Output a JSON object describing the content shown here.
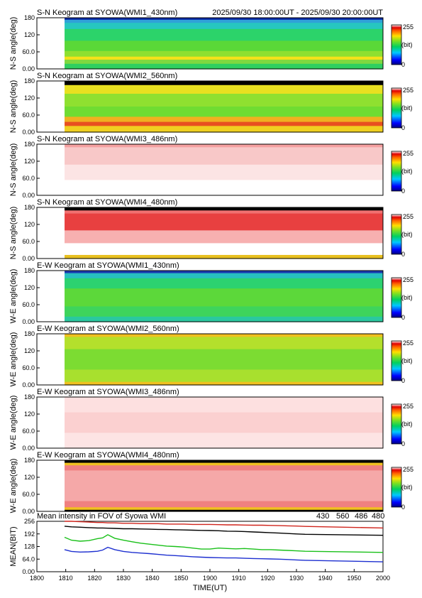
{
  "header": {
    "time_range": "2025/09/30 18:00:00UT - 2025/09/30 20:00:00UT"
  },
  "colorbar": {
    "max_label": "255",
    "unit_label": "(bit)",
    "min_label": "0"
  },
  "chart_data": [
    {
      "type": "heatmap",
      "title": "S-N Keogram at SYOWA(WMI1_430nm)",
      "ylabel": "N-S angle(deg)",
      "yticks": [
        "180",
        "120",
        "60.0",
        "0.00"
      ],
      "ylim": [
        0,
        180
      ],
      "xlim": [
        1800,
        2000
      ],
      "data_start": 1816,
      "bands": [
        {
          "from": 0,
          "to": 0.04,
          "c": "#0a2aa8"
        },
        {
          "from": 0.04,
          "to": 0.1,
          "c": "#2fa2d8"
        },
        {
          "from": 0.1,
          "to": 0.22,
          "c": "#26c7c0"
        },
        {
          "from": 0.22,
          "to": 0.45,
          "c": "#2cd36a"
        },
        {
          "from": 0.45,
          "to": 0.65,
          "c": "#5ad838"
        },
        {
          "from": 0.65,
          "to": 0.76,
          "c": "#8ee030"
        },
        {
          "from": 0.76,
          "to": 0.82,
          "c": "#f4e21a"
        },
        {
          "from": 0.82,
          "to": 0.9,
          "c": "#7fd840"
        },
        {
          "from": 0.9,
          "to": 1,
          "c": "#2fcf60"
        }
      ]
    },
    {
      "type": "heatmap",
      "title": "S-N Keogram at SYOWA(WMI2_560nm)",
      "ylabel": "N-S angle(deg)",
      "yticks": [
        "180",
        "120",
        "60.0",
        "0.00"
      ],
      "ylim": [
        0,
        180
      ],
      "xlim": [
        1800,
        2000
      ],
      "data_start": 1816,
      "bands": [
        {
          "from": 0,
          "to": 0.08,
          "c": "#000000"
        },
        {
          "from": 0.08,
          "to": 0.25,
          "c": "#e8e020"
        },
        {
          "from": 0.25,
          "to": 0.5,
          "c": "#8fe030"
        },
        {
          "from": 0.5,
          "to": 0.7,
          "c": "#6fdc32"
        },
        {
          "from": 0.7,
          "to": 0.8,
          "c": "#f0b020"
        },
        {
          "from": 0.8,
          "to": 0.88,
          "c": "#e85020"
        },
        {
          "from": 0.88,
          "to": 1,
          "c": "#f0d020"
        }
      ]
    },
    {
      "type": "heatmap",
      "title": "S-N Keogram at SYOWA(WMI3_486nm)",
      "ylabel": "N-S angle(deg)",
      "yticks": [
        "180",
        "120",
        "60.0",
        "0.00"
      ],
      "ylim": [
        0,
        180
      ],
      "xlim": [
        1800,
        2000
      ],
      "data_start": 1816,
      "bands": [
        {
          "from": 0,
          "to": 0.06,
          "c": "#f5a0a0"
        },
        {
          "from": 0.06,
          "to": 0.4,
          "c": "#f8c8c8"
        },
        {
          "from": 0.4,
          "to": 0.7,
          "c": "#fce4e4"
        },
        {
          "from": 0.7,
          "to": 1,
          "c": "#ffffff"
        }
      ]
    },
    {
      "type": "heatmap",
      "title": "S-N Keogram at SYOWA(WMI4_480nm)",
      "ylabel": "N-S angle(deg)",
      "yticks": [
        "180",
        "120",
        "60.0",
        "0.00"
      ],
      "ylim": [
        0,
        180
      ],
      "xlim": [
        1800,
        2000
      ],
      "data_start": 1816,
      "bands": [
        {
          "from": 0,
          "to": 0.06,
          "c": "#000000"
        },
        {
          "from": 0.06,
          "to": 0.12,
          "c": "#f07070"
        },
        {
          "from": 0.12,
          "to": 0.45,
          "c": "#e84040"
        },
        {
          "from": 0.45,
          "to": 0.7,
          "c": "#f7b0b0"
        },
        {
          "from": 0.7,
          "to": 0.93,
          "c": "#ffffff"
        },
        {
          "from": 0.93,
          "to": 1,
          "c": "#e8c020"
        }
      ]
    },
    {
      "type": "heatmap",
      "title": "E-W Keogram at SYOWA(WMI1_430nm)",
      "ylabel": "W-E angle(deg)",
      "yticks": [
        "180",
        "120",
        "60.0",
        "0.00"
      ],
      "ylim": [
        0,
        180
      ],
      "xlim": [
        1800,
        2000
      ],
      "data_start": 1816,
      "bands": [
        {
          "from": 0,
          "to": 0.05,
          "c": "#1a3ab0"
        },
        {
          "from": 0.05,
          "to": 0.15,
          "c": "#27c0c0"
        },
        {
          "from": 0.15,
          "to": 0.35,
          "c": "#2cd270"
        },
        {
          "from": 0.35,
          "to": 0.7,
          "c": "#5cd83a"
        },
        {
          "from": 0.7,
          "to": 0.9,
          "c": "#3ed45c"
        },
        {
          "from": 0.9,
          "to": 1,
          "c": "#2ac8a0"
        }
      ]
    },
    {
      "type": "heatmap",
      "title": "E-W Keogram at SYOWA(WMI2_560nm)",
      "ylabel": "W-E angle(deg)",
      "yticks": [
        "180",
        "120",
        "60.0",
        "0.00"
      ],
      "ylim": [
        0,
        180
      ],
      "xlim": [
        1800,
        2000
      ],
      "data_start": 1816,
      "bands": [
        {
          "from": 0,
          "to": 0.06,
          "c": "#f0c020"
        },
        {
          "from": 0.06,
          "to": 0.3,
          "c": "#b4e02c"
        },
        {
          "from": 0.3,
          "to": 0.7,
          "c": "#7cdc32"
        },
        {
          "from": 0.7,
          "to": 0.94,
          "c": "#a8e02e"
        },
        {
          "from": 0.94,
          "to": 1,
          "c": "#f0c020"
        }
      ]
    },
    {
      "type": "heatmap",
      "title": "E-W Keogram at SYOWA(WMI3_486nm)",
      "ylabel": "W-E angle(deg)",
      "yticks": [
        "180",
        "120",
        "60.0",
        "0.00"
      ],
      "ylim": [
        0,
        180
      ],
      "xlim": [
        1800,
        2000
      ],
      "data_start": 1816,
      "bands": [
        {
          "from": 0,
          "to": 0.3,
          "c": "#fde0e0"
        },
        {
          "from": 0.3,
          "to": 0.7,
          "c": "#fbd0d0"
        },
        {
          "from": 0.7,
          "to": 1,
          "c": "#fde4e4"
        }
      ]
    },
    {
      "type": "heatmap",
      "title": "E-W Keogram at SYOWA(WMI4_480nm)",
      "ylabel": "W-E angle(deg)",
      "yticks": [
        "180",
        "120",
        "60.0",
        "0.00"
      ],
      "ylim": [
        0,
        180
      ],
      "xlim": [
        1800,
        2000
      ],
      "data_start": 1816,
      "bands": [
        {
          "from": 0,
          "to": 0.05,
          "c": "#000000"
        },
        {
          "from": 0.05,
          "to": 0.1,
          "c": "#f0c020"
        },
        {
          "from": 0.1,
          "to": 0.2,
          "c": "#f08080"
        },
        {
          "from": 0.2,
          "to": 0.8,
          "c": "#f5a8a8"
        },
        {
          "from": 0.8,
          "to": 0.92,
          "c": "#f08080"
        },
        {
          "from": 0.92,
          "to": 0.97,
          "c": "#f0c020"
        },
        {
          "from": 0.97,
          "to": 1,
          "c": "#000000"
        }
      ]
    },
    {
      "type": "line",
      "title": "Mean intensity in FOV of Syowa WMI",
      "ylabel": "MEAN(BIT)",
      "xlabel": "TIME(UT)",
      "xlim": [
        1800,
        2000
      ],
      "ylim": [
        0,
        256
      ],
      "xticks": [
        "1800",
        "1810",
        "1820",
        "1830",
        "1840",
        "1850",
        "1900",
        "1910",
        "1920",
        "1930",
        "1940",
        "1950",
        "2000"
      ],
      "yticks": [
        "256",
        "192",
        "128",
        "64.0",
        "0.00"
      ],
      "x": [
        1816,
        1820,
        1825,
        1830,
        1835,
        1838,
        1841,
        1845,
        1850,
        1855,
        1860,
        1865,
        1870,
        1875,
        1880,
        1885,
        1890,
        1895,
        1900,
        1905,
        1910,
        1915,
        1920,
        1925,
        1930,
        1935,
        1940,
        1945,
        1950,
        1955,
        2000
      ],
      "series": [
        {
          "name": "430",
          "color": "#1d2fd0",
          "values": [
            112,
            103,
            100,
            101,
            104,
            110,
            124,
            112,
            103,
            98,
            95,
            92,
            88,
            84,
            82,
            79,
            76,
            74,
            72,
            71,
            70,
            70,
            68,
            67,
            66,
            65,
            64,
            62,
            60,
            58,
            50
          ]
        },
        {
          "name": "560",
          "color": "#19c019",
          "values": [
            175,
            160,
            155,
            158,
            168,
            172,
            188,
            170,
            160,
            152,
            145,
            140,
            135,
            130,
            128,
            125,
            120,
            115,
            115,
            120,
            118,
            116,
            118,
            115,
            112,
            112,
            110,
            108,
            106,
            104,
            98
          ]
        },
        {
          "name": "486",
          "color": "#d0241c",
          "values": [
            256,
            256,
            254,
            252,
            250,
            250,
            248,
            248,
            246,
            246,
            244,
            244,
            244,
            242,
            242,
            242,
            240,
            240,
            240,
            239,
            238,
            238,
            237,
            236,
            236,
            235,
            234,
            233,
            232,
            230,
            222
          ]
        },
        {
          "name": "480",
          "color": "#000000",
          "values": [
            231,
            228,
            226,
            224,
            222,
            222,
            221,
            220,
            218,
            218,
            217,
            216,
            215,
            214,
            213,
            212,
            211,
            210,
            209,
            208,
            206,
            205,
            204,
            202,
            200,
            198,
            196,
            194,
            192,
            190,
            185
          ]
        }
      ]
    }
  ]
}
